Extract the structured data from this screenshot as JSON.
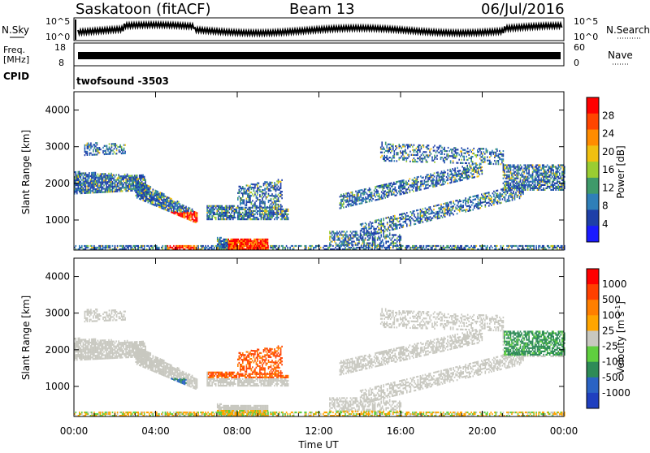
{
  "header": {
    "radar": "Saskatoon (fitACF)",
    "beam": "Beam 13",
    "date": "06/Jul/2016"
  },
  "noise_panel": {
    "left_label": "N.Sky",
    "right_label": "N.Search",
    "left_ticks": [
      "10^5",
      "10^0"
    ],
    "right_ticks": [
      "10^5",
      "10^0"
    ]
  },
  "freq_panel": {
    "label_line1": "Freq.",
    "label_line2": "[MHz]",
    "left_ticks": [
      "18",
      "8"
    ],
    "right_label": "Nave",
    "right_ticks": [
      "60",
      "0"
    ],
    "cpid_label": "CPID",
    "cpid_value": "twofsound -3503"
  },
  "colors": {
    "power_scale": [
      "#1a1aff",
      "#1e3fa8",
      "#2f7fb8",
      "#3f9a6a",
      "#9acd32",
      "#f0c010",
      "#ff8c00",
      "#ff4500",
      "#ff0000"
    ],
    "velocity_scale": [
      "#1f3fbf",
      "#2a63c4",
      "#2e8b57",
      "#5fcf3f",
      "#c8c8c0",
      "#ffa500",
      "#ff7f00",
      "#ff4000",
      "#ff0000"
    ]
  },
  "chart_data": [
    {
      "type": "heatmap",
      "title": "",
      "ylabel": "Slant Range [km]",
      "xlabel": "",
      "ylim": [
        180,
        4500
      ],
      "yticks": [
        "4000",
        "3000",
        "2000",
        "1000"
      ],
      "colorbar_label": "Power [dB]",
      "colorbar_ticks": [
        "28",
        "24",
        "20",
        "16",
        "12",
        "8",
        "4"
      ]
    },
    {
      "type": "heatmap",
      "title": "",
      "ylabel": "Slant Range [km]",
      "xlabel": "Time UT",
      "ylim": [
        180,
        4500
      ],
      "yticks": [
        "4000",
        "3000",
        "2000",
        "1000"
      ],
      "xticks": [
        "00:00",
        "04:00",
        "08:00",
        "12:00",
        "16:00",
        "20:00",
        "00:00"
      ],
      "colorbar_label": "Velocity [m s^-1]",
      "colorbar_ticks": [
        "1000",
        "500",
        "100",
        "25",
        "-25",
        "-100",
        "-500",
        "-1000"
      ]
    }
  ]
}
